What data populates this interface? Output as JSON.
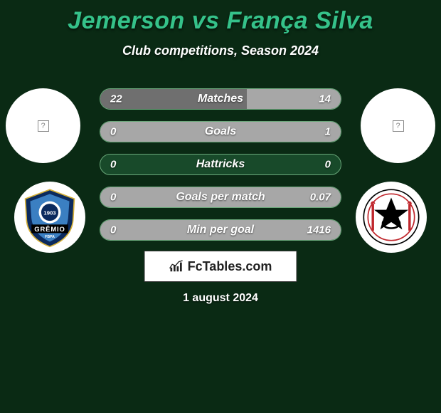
{
  "colors": {
    "background": "#0a2a14",
    "title": "#35c28a",
    "row_bg": "#184a2a",
    "row_border": "#6aa87a",
    "fill_left": "#6f6f6f",
    "fill_right": "#a7a7a7"
  },
  "title": "Jemerson vs França Silva",
  "subtitle": "Club competitions, Season 2024",
  "date": "1 august 2024",
  "brand": "FcTables.com",
  "players": {
    "left": {
      "name": "Jemerson"
    },
    "right": {
      "name": "França Silva"
    }
  },
  "clubs": {
    "left": {
      "name": "Grêmio",
      "badge_text": "GRÊMIO",
      "badge_year": "1903",
      "badge_sub": "FBPA",
      "colors": {
        "primary": "#0b2a5e",
        "secondary": "#3b7fc2",
        "accent": "#000000"
      }
    },
    "right": {
      "name": "Corinthians",
      "colors": {
        "primary": "#000000",
        "secondary": "#c0272d",
        "accent": "#ffffff"
      }
    }
  },
  "stats": [
    {
      "label": "Matches",
      "left_val": "22",
      "right_val": "14",
      "left_pct": 61,
      "right_pct": 39
    },
    {
      "label": "Goals",
      "left_val": "0",
      "right_val": "1",
      "left_pct": 0,
      "right_pct": 100
    },
    {
      "label": "Hattricks",
      "left_val": "0",
      "right_val": "0",
      "left_pct": 0,
      "right_pct": 0
    },
    {
      "label": "Goals per match",
      "left_val": "0",
      "right_val": "0.07",
      "left_pct": 0,
      "right_pct": 100
    },
    {
      "label": "Min per goal",
      "left_val": "0",
      "right_val": "1416",
      "left_pct": 0,
      "right_pct": 100
    }
  ]
}
